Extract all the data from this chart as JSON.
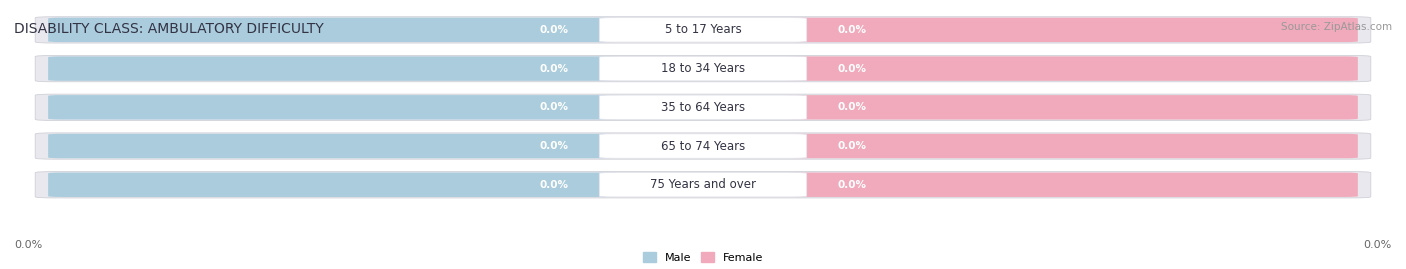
{
  "title": "DISABILITY CLASS: AMBULATORY DIFFICULTY",
  "source_text": "Source: ZipAtlas.com",
  "categories": [
    "5 to 17 Years",
    "18 to 34 Years",
    "35 to 64 Years",
    "65 to 74 Years",
    "75 Years and over"
  ],
  "male_values": [
    0.0,
    0.0,
    0.0,
    0.0,
    0.0
  ],
  "female_values": [
    0.0,
    0.0,
    0.0,
    0.0,
    0.0
  ],
  "male_color": "#aaccdd",
  "female_color": "#f0aabb",
  "bar_bg_color": "#e8e8ee",
  "bar_outline_color": "#d0d0d8",
  "label_bg_color": "#f8f8ff",
  "bg_color": "#ffffff",
  "title_color": "#333344",
  "source_color": "#999999",
  "axis_label_color": "#666666",
  "x_left_label": "0.0%",
  "x_right_label": "0.0%",
  "bar_height": 0.62,
  "title_fontsize": 10,
  "cat_label_fontsize": 8.5,
  "val_label_fontsize": 7.5,
  "axis_fontsize": 8,
  "source_fontsize": 7.5,
  "legend_fontsize": 8
}
